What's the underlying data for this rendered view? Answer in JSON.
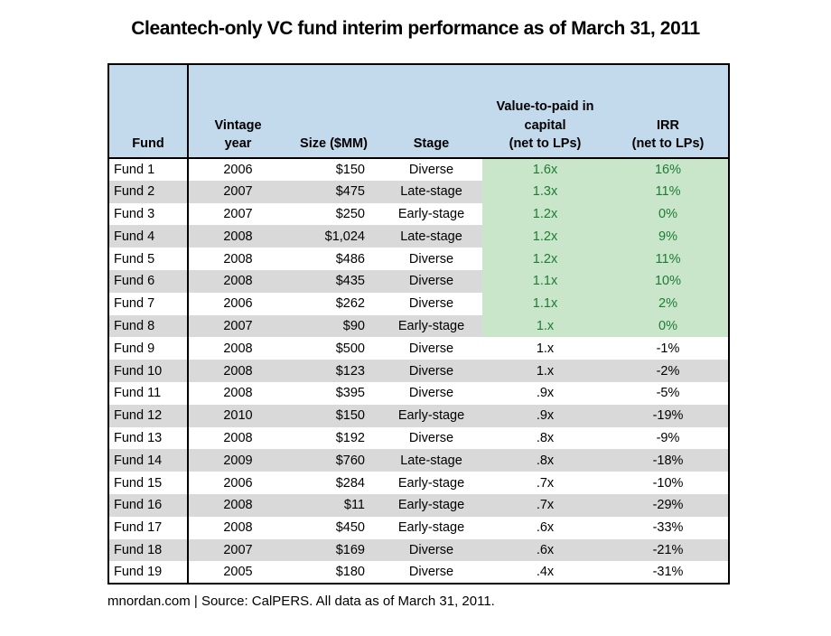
{
  "title": "Cleantech-only VC fund interim performance as of March 31, 2011",
  "footer": "mnordan.com | Source: CalPERS. All data as of March 31, 2011.",
  "colors": {
    "header_bg": "#C3D9EC",
    "row_bg": "#FFFFFF",
    "row_alt_bg": "#D9D9D9",
    "highlight_bg": "#C9E6CA",
    "highlight_text": "#1E7B34",
    "border": "#000000",
    "text": "#000000"
  },
  "chart_data": {
    "type": "table",
    "title": "Cleantech-only VC fund interim performance as of March 31, 2011",
    "source": "mnordan.com | Source: CalPERS. All data as of March 31, 2011.",
    "legend_note": "Rows for Fund 1 through Fund 8 have the last two columns highlighted green (value-to-paid-in capital of 1x or better)",
    "columns": [
      "Fund",
      "Vintage year",
      "Size ($MM)",
      "Stage",
      "Value-to-paid in capital (net to LPs)",
      "IRR (net to LPs)"
    ],
    "header": [
      {
        "lines": [
          "Fund"
        ]
      },
      {
        "lines": [
          "Vintage",
          "year"
        ]
      },
      {
        "lines": [
          "Size ($MM)"
        ]
      },
      {
        "lines": [
          "Stage"
        ]
      },
      {
        "lines": [
          "Value-to-paid in",
          "capital",
          "(net to LPs)"
        ]
      },
      {
        "lines": [
          "IRR",
          "(net to LPs)"
        ]
      }
    ],
    "rows": [
      {
        "fund": "Fund 1",
        "vintage_year": "2006",
        "size": "$150",
        "stage": "Diverse",
        "vtpi": "1.6x",
        "irr": "16%",
        "highlighted": true
      },
      {
        "fund": "Fund 2",
        "vintage_year": "2007",
        "size": "$475",
        "stage": "Late-stage",
        "vtpi": "1.3x",
        "irr": "11%",
        "highlighted": true
      },
      {
        "fund": "Fund 3",
        "vintage_year": "2007",
        "size": "$250",
        "stage": "Early-stage",
        "vtpi": "1.2x",
        "irr": "0%",
        "highlighted": true
      },
      {
        "fund": "Fund 4",
        "vintage_year": "2008",
        "size": "$1,024",
        "stage": "Late-stage",
        "vtpi": "1.2x",
        "irr": "9%",
        "highlighted": true
      },
      {
        "fund": "Fund 5",
        "vintage_year": "2008",
        "size": "$486",
        "stage": "Diverse",
        "vtpi": "1.2x",
        "irr": "11%",
        "highlighted": true
      },
      {
        "fund": "Fund 6",
        "vintage_year": "2008",
        "size": "$435",
        "stage": "Diverse",
        "vtpi": "1.1x",
        "irr": "10%",
        "highlighted": true
      },
      {
        "fund": "Fund 7",
        "vintage_year": "2006",
        "size": "$262",
        "stage": "Diverse",
        "vtpi": "1.1x",
        "irr": "2%",
        "highlighted": true
      },
      {
        "fund": "Fund 8",
        "vintage_year": "2007",
        "size": "$90",
        "stage": "Early-stage",
        "vtpi": "1.x",
        "irr": "0%",
        "highlighted": true
      },
      {
        "fund": "Fund 9",
        "vintage_year": "2008",
        "size": "$500",
        "stage": "Diverse",
        "vtpi": "1.x",
        "irr": "-1%",
        "highlighted": false
      },
      {
        "fund": "Fund 10",
        "vintage_year": "2008",
        "size": "$123",
        "stage": "Diverse",
        "vtpi": "1.x",
        "irr": "-2%",
        "highlighted": false
      },
      {
        "fund": "Fund 11",
        "vintage_year": "2008",
        "size": "$395",
        "stage": "Diverse",
        "vtpi": ".9x",
        "irr": "-5%",
        "highlighted": false
      },
      {
        "fund": "Fund 12",
        "vintage_year": "2010",
        "size": "$150",
        "stage": "Early-stage",
        "vtpi": ".9x",
        "irr": "-19%",
        "highlighted": false
      },
      {
        "fund": "Fund 13",
        "vintage_year": "2008",
        "size": "$192",
        "stage": "Diverse",
        "vtpi": ".8x",
        "irr": "-9%",
        "highlighted": false
      },
      {
        "fund": "Fund 14",
        "vintage_year": "2009",
        "size": "$760",
        "stage": "Late-stage",
        "vtpi": ".8x",
        "irr": "-18%",
        "highlighted": false
      },
      {
        "fund": "Fund 15",
        "vintage_year": "2006",
        "size": "$284",
        "stage": "Early-stage",
        "vtpi": ".7x",
        "irr": "-10%",
        "highlighted": false
      },
      {
        "fund": "Fund 16",
        "vintage_year": "2008",
        "size": "$11",
        "stage": "Early-stage",
        "vtpi": ".7x",
        "irr": "-29%",
        "highlighted": false
      },
      {
        "fund": "Fund 17",
        "vintage_year": "2008",
        "size": "$450",
        "stage": "Early-stage",
        "vtpi": ".6x",
        "irr": "-33%",
        "highlighted": false
      },
      {
        "fund": "Fund 18",
        "vintage_year": "2007",
        "size": "$169",
        "stage": "Diverse",
        "vtpi": ".6x",
        "irr": "-21%",
        "highlighted": false
      },
      {
        "fund": "Fund 19",
        "vintage_year": "2005",
        "size": "$180",
        "stage": "Diverse",
        "vtpi": ".4x",
        "irr": "-31%",
        "highlighted": false
      }
    ]
  }
}
